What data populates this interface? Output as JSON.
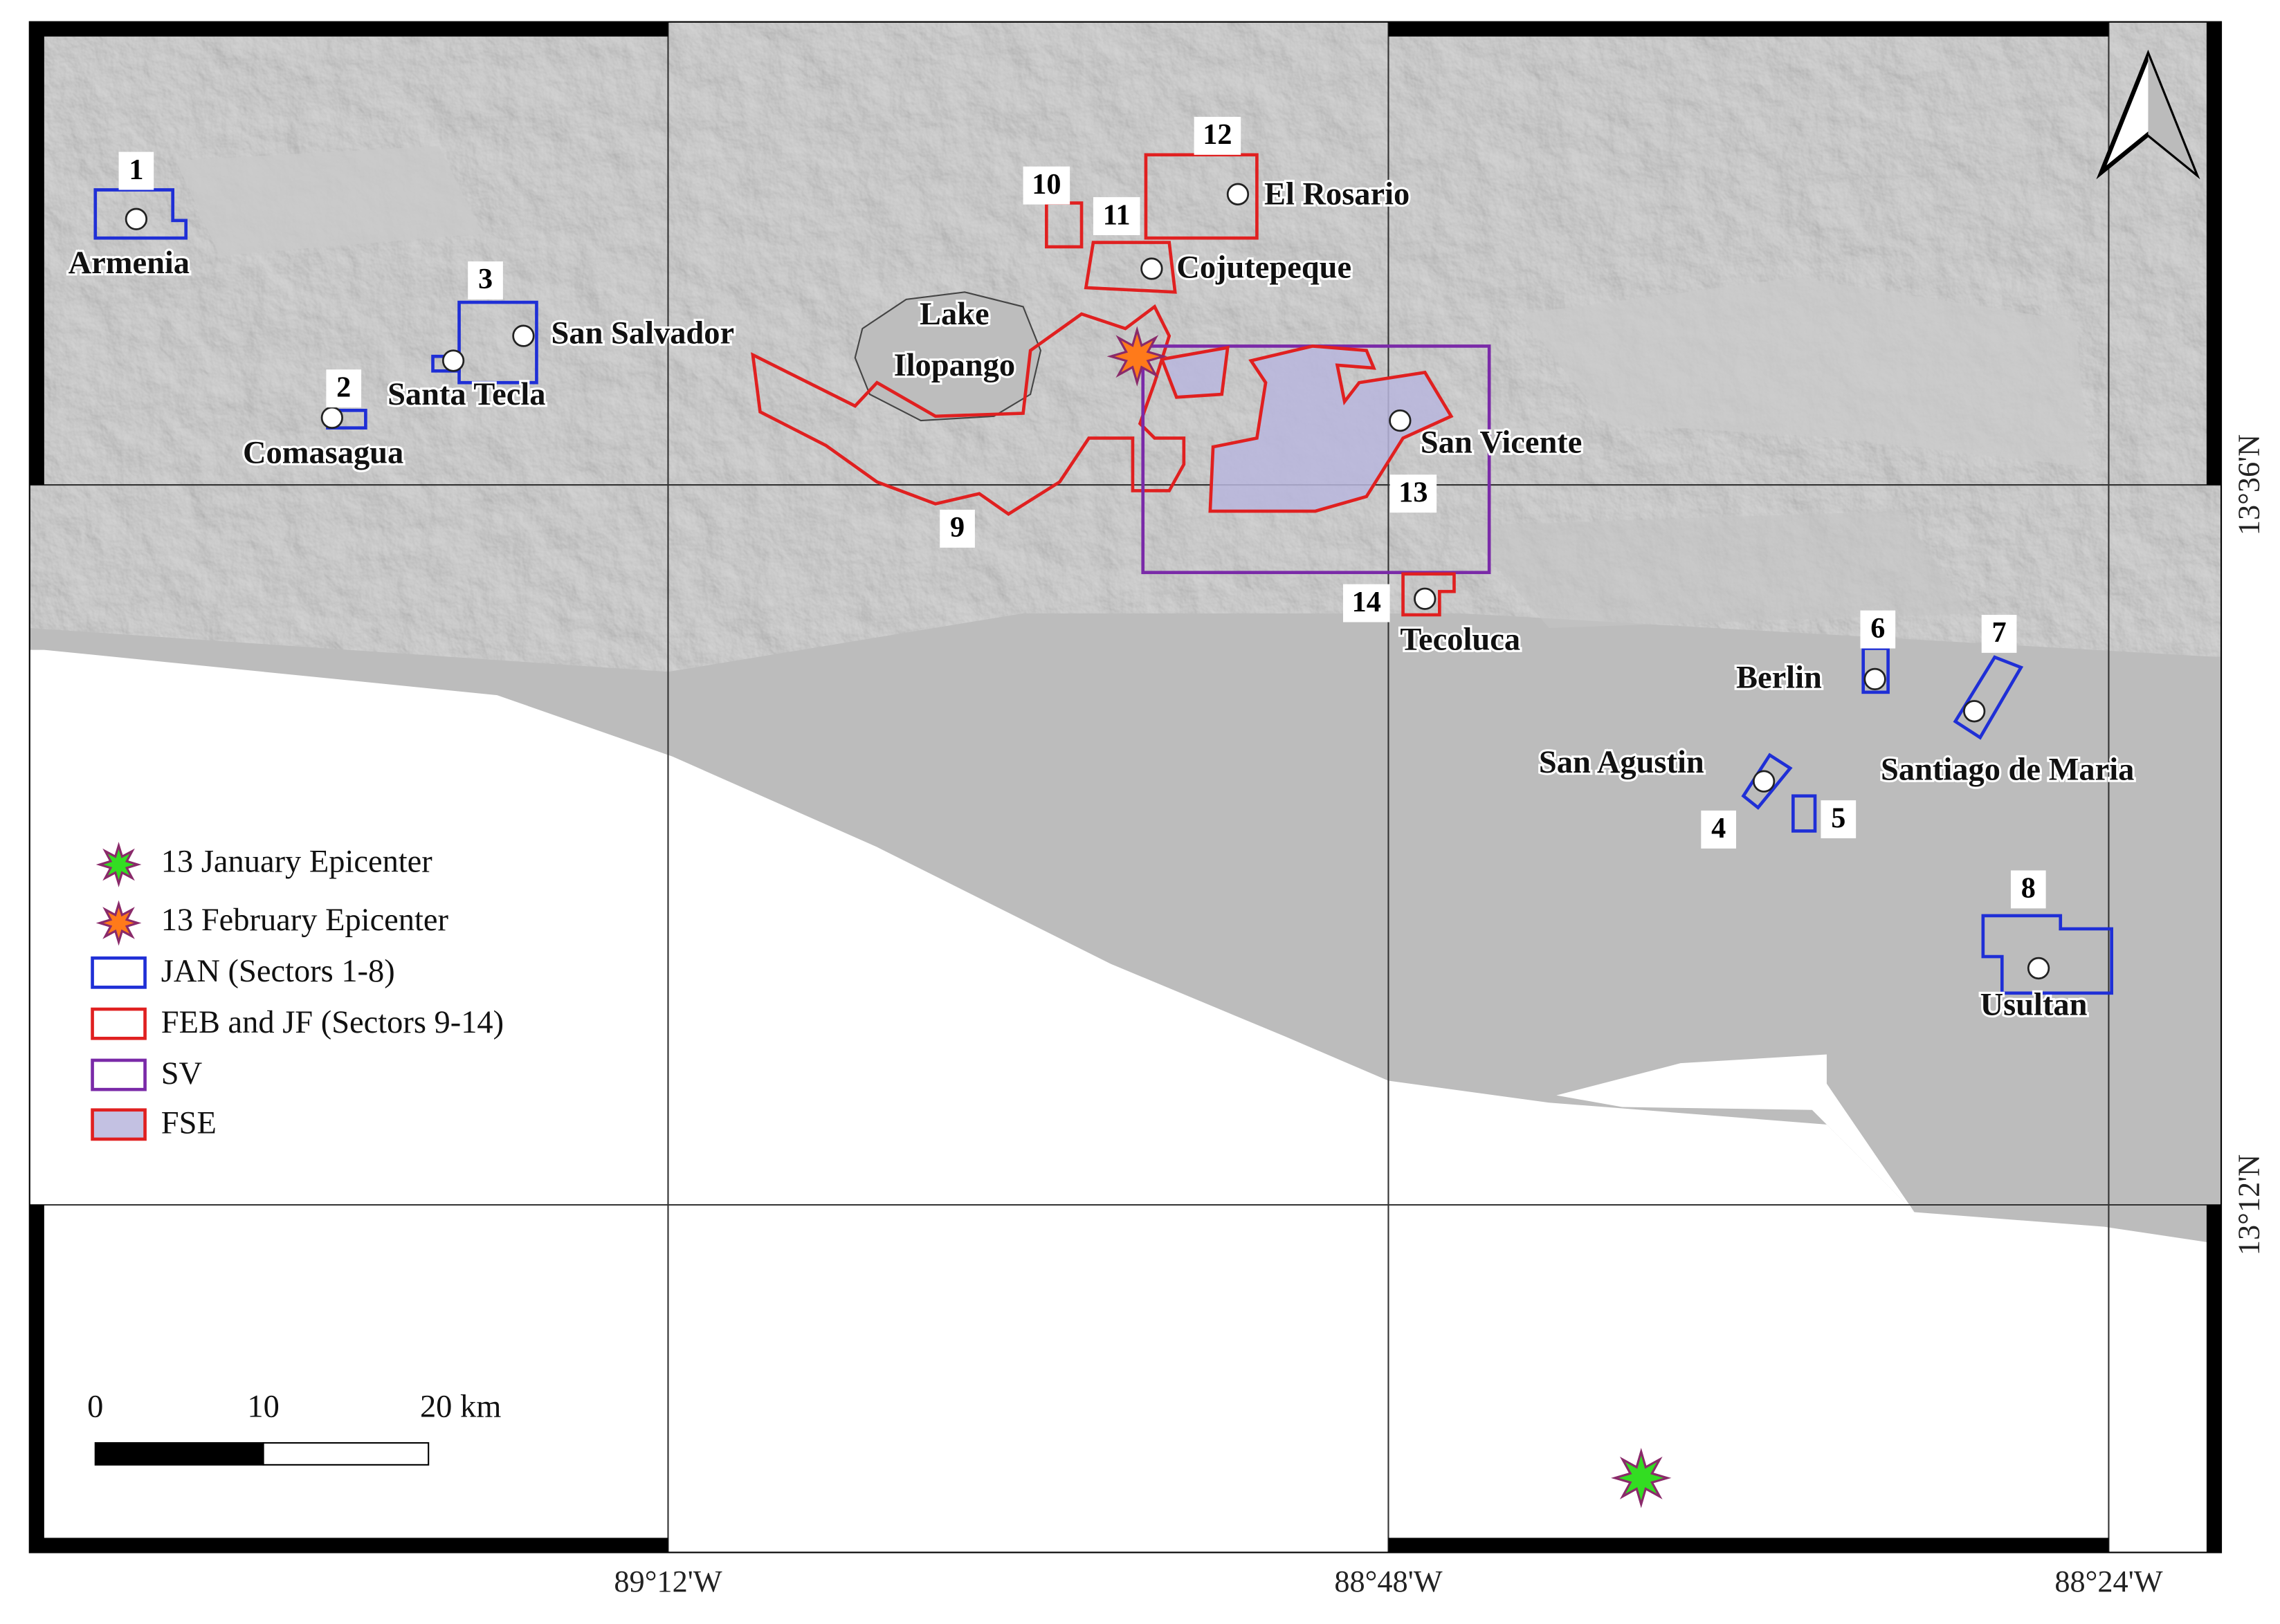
{
  "map": {
    "sectors": [
      "1",
      "2",
      "3",
      "4",
      "5",
      "6",
      "7",
      "8",
      "9",
      "10",
      "11",
      "12",
      "13",
      "14"
    ],
    "places": [
      "Armenia",
      "San Salvador",
      "Santa Tecla",
      "Comasagua",
      "El Rosario",
      "Cojutepeque",
      "San Vicente",
      "Tecoluca",
      "Berlin",
      "San Agustin",
      "Santiago de Maria",
      "Usultan"
    ],
    "lake": [
      "Lake",
      "Ilopango"
    ],
    "legend": [
      "13 January Epicenter",
      "13 February Epicenter",
      "JAN (Sectors 1-8)",
      "FEB and JF (Sectors 9-14)",
      "SV",
      "FSE"
    ],
    "scale": [
      "0",
      "10",
      "20 km"
    ],
    "longitudes": [
      "89°12'W",
      "88°48'W",
      "88°24'W"
    ],
    "latitudes": [
      "13°36'N",
      "13°12'N"
    ]
  }
}
